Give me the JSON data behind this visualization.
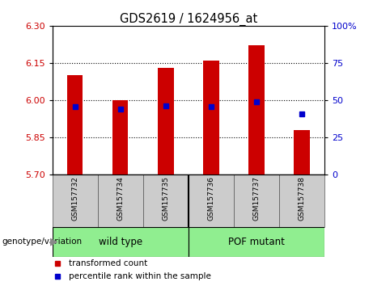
{
  "title": "GDS2619 / 1624956_at",
  "samples": [
    "GSM157732",
    "GSM157734",
    "GSM157735",
    "GSM157736",
    "GSM157737",
    "GSM157738"
  ],
  "bar_tops": [
    6.1,
    6.0,
    6.13,
    6.16,
    6.22,
    5.88
  ],
  "bar_bottom": 5.7,
  "blue_values": [
    5.974,
    5.964,
    5.975,
    5.974,
    5.993,
    5.943
  ],
  "ylim_left": [
    5.7,
    6.3
  ],
  "yticks_left": [
    5.7,
    5.85,
    6.0,
    6.15,
    6.3
  ],
  "ylim_right": [
    0,
    100
  ],
  "yticks_right": [
    0,
    25,
    50,
    75,
    100
  ],
  "yticklabels_right": [
    "0",
    "25",
    "50",
    "75",
    "100%"
  ],
  "grid_values": [
    5.85,
    6.0,
    6.15
  ],
  "bar_color": "#CC0000",
  "blue_color": "#0000CC",
  "left_axis_color": "#CC0000",
  "right_axis_color": "#0000CC",
  "bar_width": 0.35,
  "sample_box_color": "#CCCCCC",
  "wt_color": "#90EE90",
  "pof_color": "#90EE90",
  "group_divider": 2.5
}
